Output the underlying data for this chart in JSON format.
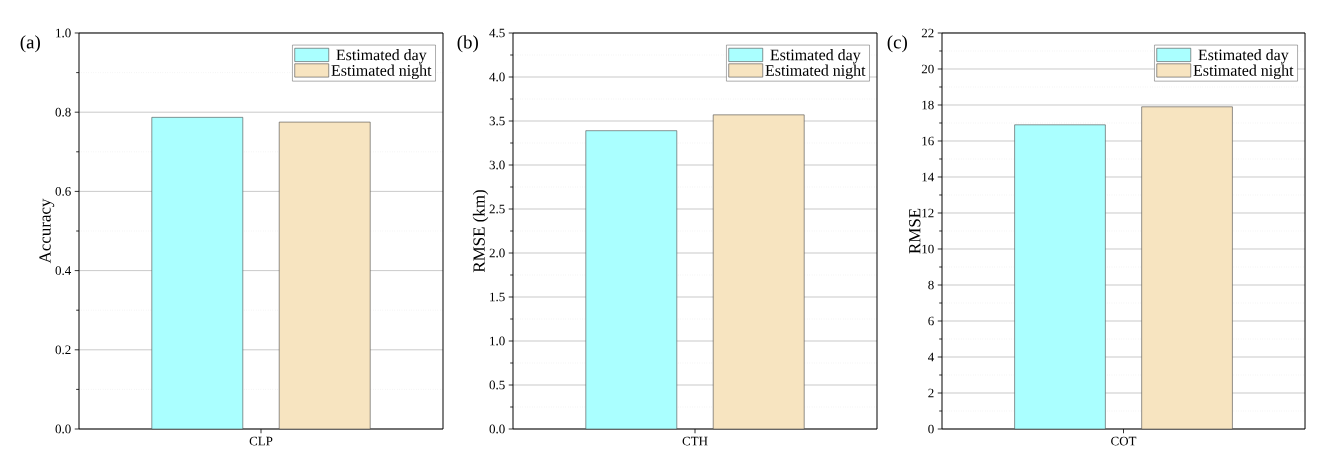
{
  "chart_data": [
    {
      "type": "bar",
      "title": "(a)",
      "ylabel": "Accuracy",
      "categories": [
        "CLP"
      ],
      "series": [
        {
          "name": "Estimated day",
          "color": "#aaffff",
          "values": [
            0.787
          ]
        },
        {
          "name": "Estimated night",
          "color": "#f7e4c0",
          "values": [
            0.775
          ]
        }
      ],
      "ylim": [
        0,
        1.0
      ],
      "yticks": [
        {
          "value": 0,
          "label": "0.0"
        },
        {
          "value": 0.2,
          "label": "0.2"
        },
        {
          "value": 0.4,
          "label": "0.4"
        },
        {
          "value": 0.6,
          "label": "0.6"
        },
        {
          "value": 0.8,
          "label": "0.8"
        },
        {
          "value": 1.0,
          "label": "1.0"
        }
      ],
      "grid": "y",
      "legend": "top right"
    },
    {
      "type": "bar",
      "title": "(b)",
      "ylabel": "RMSE (km)",
      "categories": [
        "CTH"
      ],
      "series": [
        {
          "name": "Estimated day",
          "color": "#aaffff",
          "values": [
            3.39
          ]
        },
        {
          "name": "Estimated night",
          "color": "#f7e4c0",
          "values": [
            3.57
          ]
        }
      ],
      "ylim": [
        0,
        4.5
      ],
      "yticks": [
        {
          "value": 0,
          "label": "0.0"
        },
        {
          "value": 0.5,
          "label": "0.5"
        },
        {
          "value": 1.0,
          "label": "1.0"
        },
        {
          "value": 1.5,
          "label": "1.5"
        },
        {
          "value": 2.0,
          "label": "2.0"
        },
        {
          "value": 2.5,
          "label": "2.5"
        },
        {
          "value": 3.0,
          "label": "3.0"
        },
        {
          "value": 3.5,
          "label": "3.5"
        },
        {
          "value": 4.0,
          "label": "4.0"
        },
        {
          "value": 4.5,
          "label": "4.5"
        }
      ],
      "grid": "y",
      "legend": "top right"
    },
    {
      "type": "bar",
      "title": "(c)",
      "ylabel": "RMSE",
      "categories": [
        "COT"
      ],
      "series": [
        {
          "name": "Estimated day",
          "color": "#aaffff",
          "values": [
            16.9
          ]
        },
        {
          "name": "Estimated night",
          "color": "#f7e4c0",
          "values": [
            17.9
          ]
        }
      ],
      "ylim": [
        0,
        22
      ],
      "yticks": [
        0,
        2,
        4,
        6,
        8,
        10,
        12,
        14,
        16,
        18,
        20,
        22
      ],
      "grid": "y",
      "legend": "top right"
    }
  ]
}
